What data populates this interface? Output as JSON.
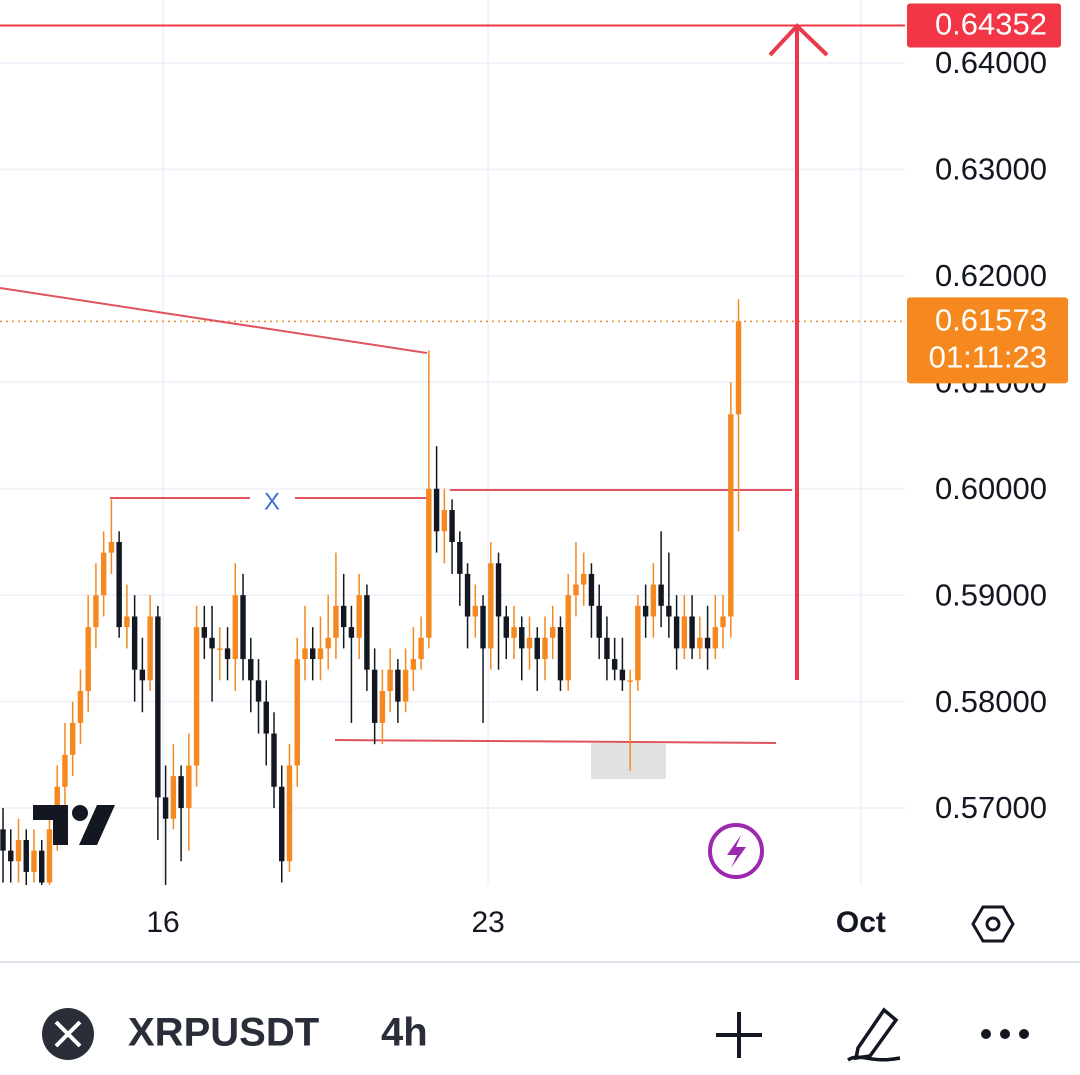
{
  "chart_data": {
    "type": "candlestick",
    "up_color": "#f5891f",
    "down_color": "#131722",
    "grid": true,
    "ylim": [
      0.56277,
      0.64592
    ],
    "yticks": [
      {
        "value": 0.64,
        "label": "0.64000"
      },
      {
        "value": 0.63,
        "label": "0.63000"
      },
      {
        "value": 0.62,
        "label": "0.62000"
      },
      {
        "value": 0.61,
        "label": "0.61000"
      },
      {
        "value": 0.6,
        "label": "0.60000"
      },
      {
        "value": 0.59,
        "label": "0.59000"
      },
      {
        "value": 0.58,
        "label": "0.58000"
      },
      {
        "value": 0.57,
        "label": "0.57000"
      }
    ],
    "xlim": [
      -0.39,
      116.5
    ],
    "xticks": [
      {
        "value": 20.67,
        "label": "16"
      },
      {
        "value": 62.66,
        "label": "23"
      },
      {
        "value": 110.8,
        "label": "Oct"
      }
    ],
    "price_lines": [
      {
        "value": 0.64352,
        "label": "0.64352",
        "color": "#f23645"
      }
    ],
    "last_price": {
      "value": 0.61573,
      "label": "0.61573",
      "countdown": "01:11:23",
      "color": "#f5891f"
    },
    "annotation": "X",
    "ohlc": [
      [
        0.568,
        0.57,
        0.563,
        0.566
      ],
      [
        0.566,
        0.568,
        0.563,
        0.565
      ],
      [
        0.565,
        0.569,
        0.563,
        0.567
      ],
      [
        0.567,
        0.568,
        0.562,
        0.564
      ],
      [
        0.564,
        0.568,
        0.563,
        0.566
      ],
      [
        0.566,
        0.567,
        0.561,
        0.563
      ],
      [
        0.563,
        0.57,
        0.562,
        0.568
      ],
      [
        0.568,
        0.574,
        0.566,
        0.572
      ],
      [
        0.572,
        0.578,
        0.57,
        0.575
      ],
      [
        0.575,
        0.58,
        0.573,
        0.578
      ],
      [
        0.578,
        0.583,
        0.576,
        0.581
      ],
      [
        0.581,
        0.59,
        0.579,
        0.587
      ],
      [
        0.587,
        0.593,
        0.585,
        0.59
      ],
      [
        0.59,
        0.596,
        0.588,
        0.594
      ],
      [
        0.594,
        0.599,
        0.592,
        0.595
      ],
      [
        0.595,
        0.596,
        0.586,
        0.587
      ],
      [
        0.587,
        0.591,
        0.585,
        0.588
      ],
      [
        0.588,
        0.59,
        0.58,
        0.583
      ],
      [
        0.583,
        0.586,
        0.579,
        0.582
      ],
      [
        0.582,
        0.59,
        0.581,
        0.588
      ],
      [
        0.588,
        0.589,
        0.567,
        0.571
      ],
      [
        0.571,
        0.574,
        0.5625,
        0.569
      ],
      [
        0.569,
        0.576,
        0.568,
        0.573
      ],
      [
        0.573,
        0.574,
        0.565,
        0.57
      ],
      [
        0.57,
        0.577,
        0.566,
        0.574
      ],
      [
        0.574,
        0.589,
        0.572,
        0.587
      ],
      [
        0.587,
        0.589,
        0.584,
        0.586
      ],
      [
        0.586,
        0.589,
        0.58,
        0.585
      ],
      [
        0.585,
        0.587,
        0.582,
        0.585
      ],
      [
        0.585,
        0.587,
        0.582,
        0.584
      ],
      [
        0.584,
        0.593,
        0.581,
        0.59
      ],
      [
        0.59,
        0.592,
        0.582,
        0.584
      ],
      [
        0.584,
        0.586,
        0.579,
        0.582
      ],
      [
        0.582,
        0.584,
        0.577,
        0.58
      ],
      [
        0.58,
        0.582,
        0.574,
        0.577
      ],
      [
        0.577,
        0.579,
        0.57,
        0.572
      ],
      [
        0.572,
        0.574,
        0.563,
        0.565
      ],
      [
        0.565,
        0.576,
        0.564,
        0.574
      ],
      [
        0.574,
        0.586,
        0.572,
        0.584
      ],
      [
        0.584,
        0.589,
        0.582,
        0.585
      ],
      [
        0.585,
        0.587,
        0.582,
        0.584
      ],
      [
        0.584,
        0.588,
        0.582,
        0.585
      ],
      [
        0.585,
        0.59,
        0.583,
        0.586
      ],
      [
        0.586,
        0.594,
        0.584,
        0.589
      ],
      [
        0.589,
        0.592,
        0.585,
        0.587
      ],
      [
        0.587,
        0.589,
        0.578,
        0.586
      ],
      [
        0.586,
        0.592,
        0.584,
        0.59
      ],
      [
        0.59,
        0.591,
        0.581,
        0.583
      ],
      [
        0.583,
        0.585,
        0.576,
        0.578
      ],
      [
        0.578,
        0.583,
        0.576,
        0.581
      ],
      [
        0.581,
        0.585,
        0.579,
        0.583
      ],
      [
        0.583,
        0.584,
        0.578,
        0.58
      ],
      [
        0.58,
        0.585,
        0.579,
        0.583
      ],
      [
        0.583,
        0.587,
        0.581,
        0.584
      ],
      [
        0.584,
        0.588,
        0.583,
        0.586
      ],
      [
        0.586,
        0.613,
        0.585,
        0.6
      ],
      [
        0.6,
        0.604,
        0.594,
        0.596
      ],
      [
        0.596,
        0.6,
        0.593,
        0.598
      ],
      [
        0.598,
        0.599,
        0.592,
        0.595
      ],
      [
        0.595,
        0.596,
        0.589,
        0.592
      ],
      [
        0.592,
        0.593,
        0.585,
        0.588
      ],
      [
        0.588,
        0.591,
        0.586,
        0.589
      ],
      [
        0.589,
        0.59,
        0.578,
        0.585
      ],
      [
        0.585,
        0.595,
        0.583,
        0.593
      ],
      [
        0.593,
        0.594,
        0.583,
        0.588
      ],
      [
        0.588,
        0.589,
        0.584,
        0.586
      ],
      [
        0.586,
        0.589,
        0.584,
        0.587
      ],
      [
        0.587,
        0.588,
        0.582,
        0.585
      ],
      [
        0.585,
        0.588,
        0.583,
        0.586
      ],
      [
        0.586,
        0.587,
        0.581,
        0.584
      ],
      [
        0.584,
        0.588,
        0.582,
        0.586
      ],
      [
        0.586,
        0.589,
        0.584,
        0.587
      ],
      [
        0.587,
        0.588,
        0.581,
        0.582
      ],
      [
        0.582,
        0.592,
        0.581,
        0.59
      ],
      [
        0.59,
        0.595,
        0.588,
        0.591
      ],
      [
        0.591,
        0.594,
        0.589,
        0.592
      ],
      [
        0.592,
        0.593,
        0.586,
        0.589
      ],
      [
        0.589,
        0.591,
        0.584,
        0.586
      ],
      [
        0.586,
        0.588,
        0.582,
        0.584
      ],
      [
        0.584,
        0.586,
        0.582,
        0.583
      ],
      [
        0.583,
        0.586,
        0.581,
        0.582
      ],
      [
        0.582,
        0.583,
        0.5735,
        0.582
      ],
      [
        0.582,
        0.59,
        0.581,
        0.589
      ],
      [
        0.589,
        0.591,
        0.586,
        0.588
      ],
      [
        0.588,
        0.593,
        0.586,
        0.591
      ],
      [
        0.591,
        0.596,
        0.587,
        0.589
      ],
      [
        0.589,
        0.594,
        0.586,
        0.588
      ],
      [
        0.588,
        0.59,
        0.583,
        0.585
      ],
      [
        0.585,
        0.59,
        0.584,
        0.588
      ],
      [
        0.588,
        0.59,
        0.584,
        0.585
      ],
      [
        0.585,
        0.588,
        0.584,
        0.586
      ],
      [
        0.586,
        0.589,
        0.583,
        0.585
      ],
      [
        0.585,
        0.59,
        0.584,
        0.587
      ],
      [
        0.587,
        0.59,
        0.585,
        0.588
      ],
      [
        0.588,
        0.61,
        0.586,
        0.607
      ],
      [
        0.607,
        0.6178,
        0.596,
        0.61573
      ]
    ]
  },
  "toolbar": {
    "symbol": "XRPUSDT",
    "interval": "4h"
  }
}
